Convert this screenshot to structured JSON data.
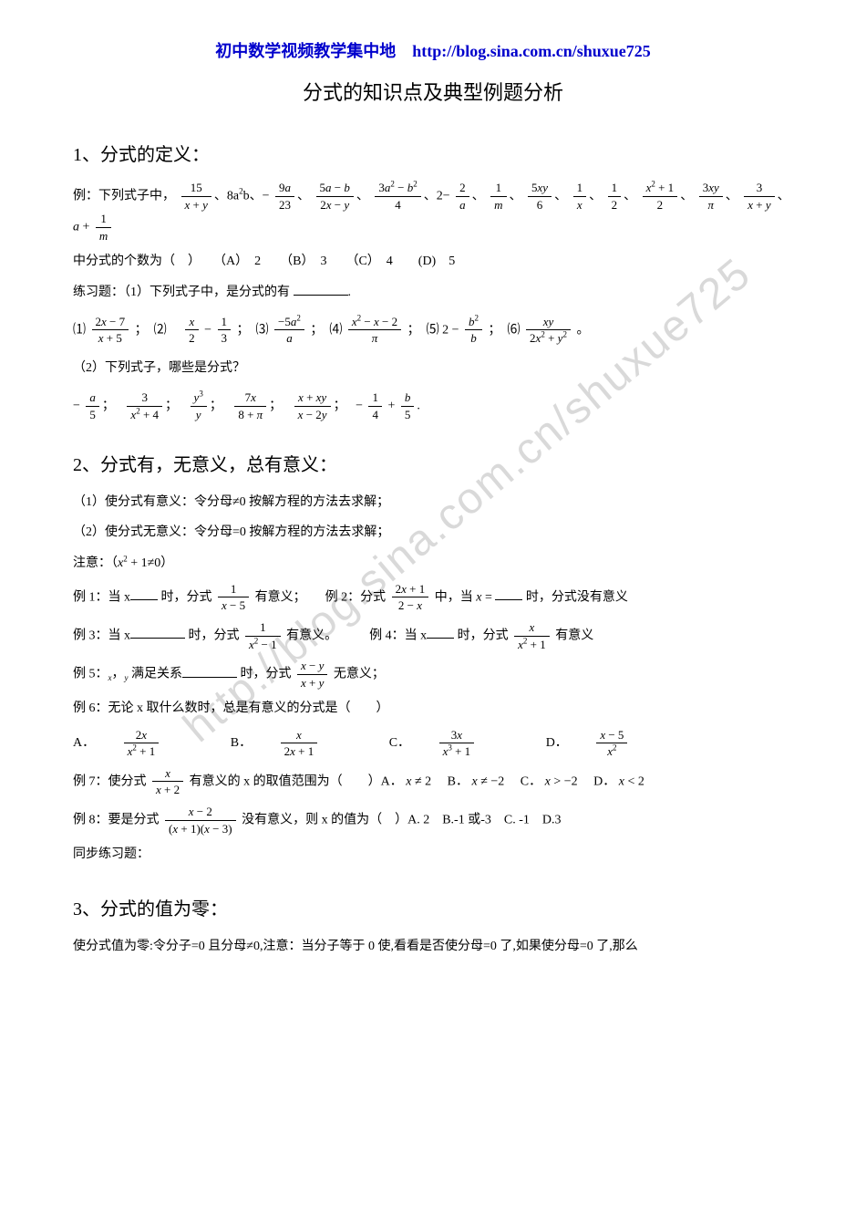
{
  "header": {
    "link_text": "初中数学视频教学集中地　http://blog.sina.com.cn/shuxue725",
    "title": "分式的知识点及典型例题分析"
  },
  "watermark": "http://blog.sina.com.cn/shuxue725",
  "section1": {
    "heading": "1、分式的定义：",
    "example_intro": "例：下列式子中，",
    "example_tail": "中分式的个数为（　）　　（A）　2　　（B）　3　　（C）　4　　(D)　5",
    "practice_a": "练习题：（1）下列式子中，是分式的有",
    "item_prefixes": [
      "⑴",
      "；　⑵　",
      "；　⑶",
      "；　⑷",
      "；　⑸",
      "；　⑹",
      "。"
    ],
    "practice_b": "（2）下列式子，哪些是分式？"
  },
  "section2": {
    "heading": "2、分式有，无意义，总有意义：",
    "line1": "（1）使分式有意义：令分母≠0 按解方程的方法去求解；",
    "line2": "（2）使分式无意义：令分母=0 按解方程的方法去求解；",
    "note": "注意：（",
    "note_tail": "≠0）",
    "ex1a": "例 1：当 x",
    "ex1b": "时，分式",
    "ex1c": "有意义；　　例 2：分式",
    "ex1d": "中，当",
    "ex1e": "时，分式没有意义",
    "ex3a": "例 3：当 x",
    "ex3b": "时，分式",
    "ex3c": "有意义。　　　例 4：当 x",
    "ex3d": "时，分式",
    "ex3e": "有意义",
    "ex5a": "例 5：",
    "ex5b": "满足关系",
    "ex5c": "时，分式",
    "ex5d": "无意义；",
    "ex6": "例 6：无论 x 取什么数时，总是有意义的分式是（　　）",
    "ex6_opts": [
      "A．",
      "B．",
      "C．",
      "D．"
    ],
    "ex7a": "例 7：使分式",
    "ex7b": " 有意义的 x 的取值范围为（　　）A．",
    "ex7c": "　B．",
    "ex7d": "　C．",
    "ex7e": "　D．",
    "ex8a": "例 8：要是分式",
    "ex8b": "没有意义，则 x 的值为（　）A. 2　B.-1 或-3　C. -1　D.3",
    "sync": "同步练习题："
  },
  "section3": {
    "heading": "3、分式的值为零：",
    "line1": "使分式值为零:令分子=0 且分母≠0,注意：当分子等于 0 使,看看是否使分母=0 了,如果使分母=0 了,那么"
  },
  "style": {
    "link_color": "#0000cc",
    "text_color": "#000000",
    "background": "#ffffff"
  }
}
